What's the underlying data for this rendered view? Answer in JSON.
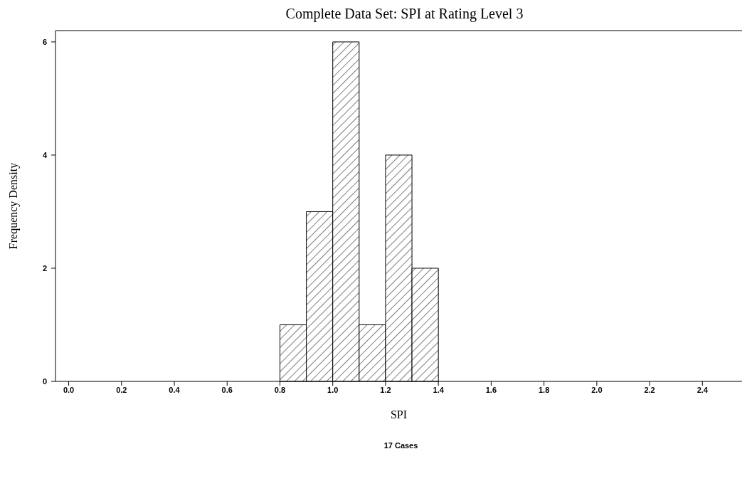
{
  "chart_data": {
    "type": "histogram",
    "title": "Complete Data Set: SPI at Rating Level 3",
    "xlabel": "SPI",
    "ylabel": "Frequency Density",
    "bins": [
      0.8,
      0.9,
      1.0,
      1.1,
      1.2,
      1.3,
      1.4
    ],
    "values": [
      1,
      3,
      6,
      1,
      4,
      2
    ],
    "color": "#000000",
    "xlim": [
      -0.05,
      2.55
    ],
    "xticks": [
      {
        "value": 0,
        "label": "0.0"
      },
      0.2,
      0.4,
      0.6,
      0.8,
      {
        "value": 1,
        "label": "1.0"
      },
      1.2,
      1.4,
      1.6,
      1.8,
      {
        "value": 2,
        "label": "2.0"
      },
      2.2,
      2.4
    ],
    "ylim": [
      0,
      6.2
    ],
    "yticks": [
      0,
      2,
      4,
      6
    ],
    "annotations": [
      "17 Cases"
    ]
  }
}
